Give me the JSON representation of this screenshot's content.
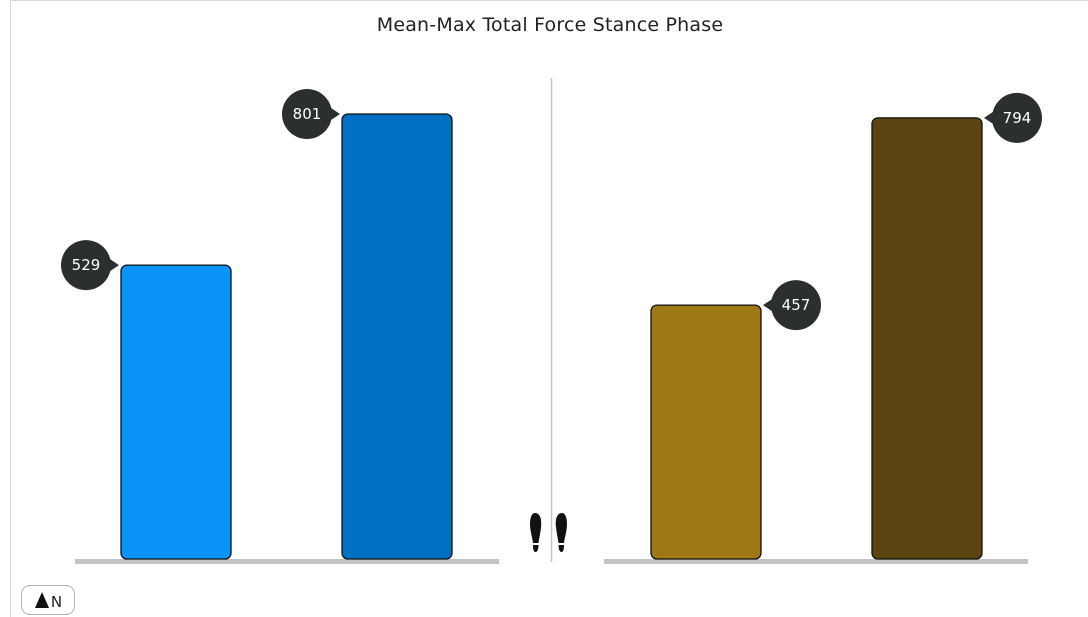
{
  "chart_data": {
    "type": "bar",
    "title": "Mean-Max Total Force Stance Phase",
    "ylim": [
      0,
      900
    ],
    "grid": false,
    "groups": [
      {
        "side": "left",
        "series": [
          {
            "value": 529,
            "label": "529",
            "color": "#0a94fb"
          },
          {
            "value": 801,
            "label": "801",
            "color": "#0070c3"
          }
        ]
      },
      {
        "side": "right",
        "series": [
          {
            "value": 457,
            "label": "457",
            "color": "#9e7815"
          },
          {
            "value": 794,
            "label": "794",
            "color": "#5a4511"
          }
        ]
      }
    ],
    "label_bubble_color": "#2c2f2f",
    "baseline_color": "#c3c3c3"
  },
  "controls": {
    "north_button_label": "N",
    "north_icon": "north-arrow-icon",
    "center_icon": "footprints-icon"
  }
}
